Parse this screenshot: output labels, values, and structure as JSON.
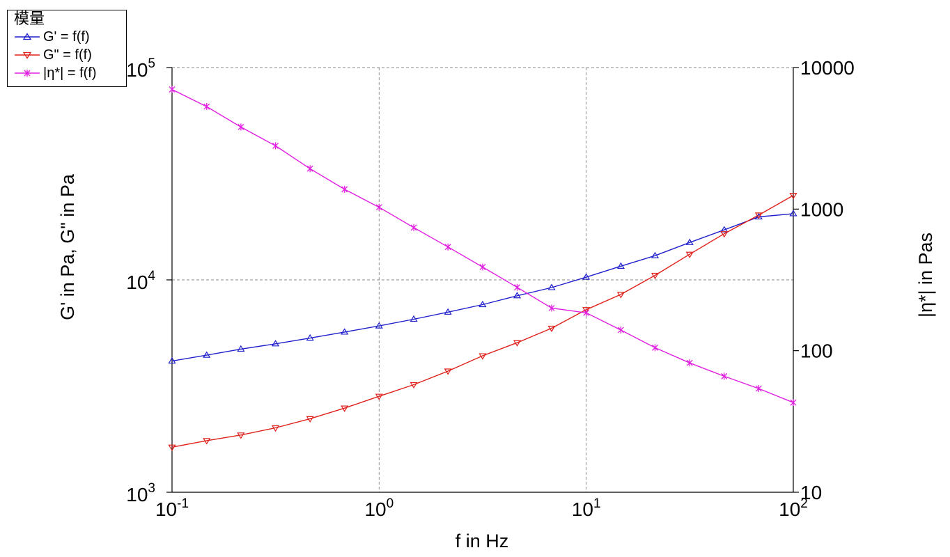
{
  "legend": {
    "title": "模量",
    "entries": [
      {
        "label": "G' = f(f)",
        "color": "#1f1fcc",
        "marker": "triangle-up"
      },
      {
        "label": "G\" = f(f)",
        "color": "#e0201a",
        "marker": "triangle-down"
      },
      {
        "label": "|η*| = f(f)",
        "color": "#e020e0",
        "marker": "star"
      }
    ]
  },
  "chart_data": {
    "type": "line",
    "x_scale": "log",
    "y_scale": "log",
    "y2_scale": "log",
    "xlim": [
      0.1,
      100
    ],
    "ylim": [
      1000,
      100000
    ],
    "y2lim": [
      10,
      10000
    ],
    "xlabel": "f in Hz",
    "ylabel": "G' in Pa, G\" in Pa",
    "y2label": "|η*| in Pas",
    "grid": true,
    "legend_position": "top-left",
    "x_ticks": [
      {
        "value": 0.1,
        "base": "10",
        "exp": "-1"
      },
      {
        "value": 1,
        "base": "10",
        "exp": "0"
      },
      {
        "value": 10,
        "base": "10",
        "exp": "1"
      },
      {
        "value": 100,
        "base": "10",
        "exp": "2"
      }
    ],
    "y_ticks": [
      {
        "value": 1000,
        "base": "10",
        "exp": "3"
      },
      {
        "value": 10000,
        "base": "10",
        "exp": "4"
      },
      {
        "value": 100000,
        "base": "10",
        "exp": "5"
      }
    ],
    "y2_ticks": [
      {
        "value": 10,
        "label": "10"
      },
      {
        "value": 100,
        "label": "100"
      },
      {
        "value": 1000,
        "label": "1000"
      },
      {
        "value": 10000,
        "label": "10000"
      }
    ],
    "x": [
      0.1,
      0.147,
      0.215,
      0.316,
      0.464,
      0.681,
      1.0,
      1.47,
      2.15,
      3.16,
      4.64,
      6.81,
      10.0,
      14.7,
      21.5,
      31.6,
      46.4,
      68.1,
      100.0
    ],
    "series": [
      {
        "name": "G' = f(f)",
        "axis": "left",
        "color": "#1f1fcc",
        "marker": "triangle-up",
        "values": [
          4150,
          4420,
          4720,
          5000,
          5320,
          5680,
          6070,
          6530,
          7050,
          7650,
          8420,
          9200,
          10300,
          11600,
          13000,
          15000,
          17200,
          19800,
          20500
        ]
      },
      {
        "name": "G\" = f(f)",
        "axis": "left",
        "color": "#e0201a",
        "marker": "triangle-down",
        "values": [
          1630,
          1750,
          1860,
          2010,
          2220,
          2490,
          2830,
          3210,
          3720,
          4390,
          5060,
          5920,
          7240,
          8540,
          10500,
          13200,
          16500,
          20200,
          25000
        ]
      },
      {
        "name": "|η*| = f(f)",
        "axis": "right",
        "color": "#e020e0",
        "marker": "star",
        "values": [
          7000,
          5300,
          3800,
          2800,
          1930,
          1380,
          1030,
          740,
          540,
          390,
          280,
          200,
          185,
          140,
          105,
          82,
          66,
          54,
          43
        ]
      }
    ]
  }
}
